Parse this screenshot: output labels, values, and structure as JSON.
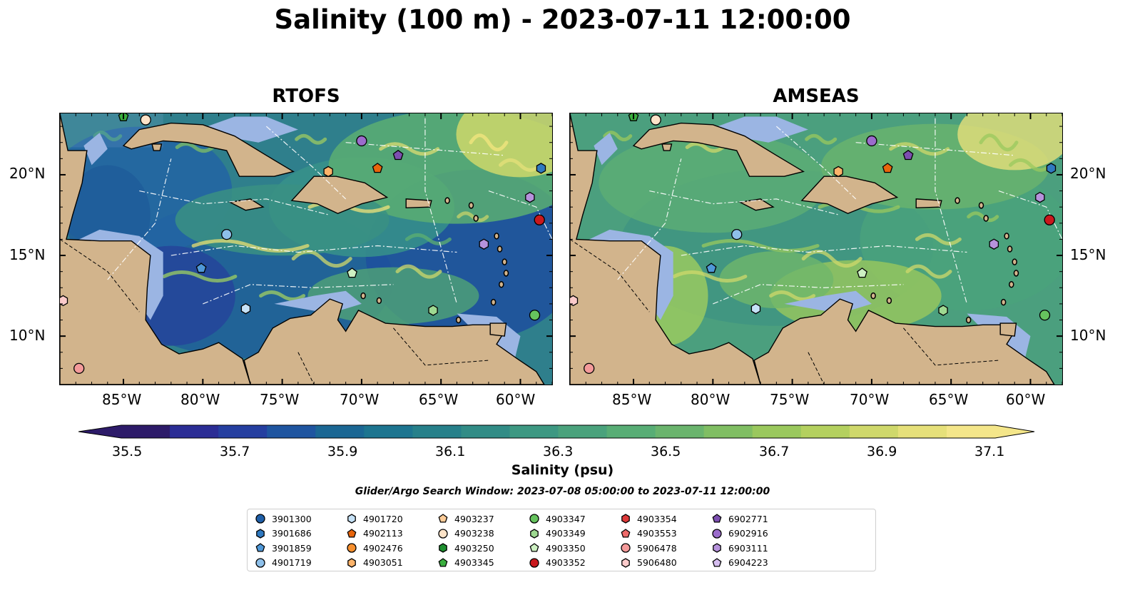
{
  "title": "Salinity (100 m) - 2023-07-11 12:00:00",
  "panels": [
    {
      "name": "rtofs",
      "title": "RTOFS"
    },
    {
      "name": "amseas",
      "title": "AMSEAS"
    }
  ],
  "lat_ticks": [
    "20°N",
    "15°N",
    "10°N"
  ],
  "lon_ticks": [
    "85°W",
    "80°W",
    "75°W",
    "70°W",
    "65°W",
    "60°W"
  ],
  "colors": {
    "land": "#d2b48c",
    "shallow": "#9bb5e3",
    "low_salinity": "#2b1d6b",
    "high_salinity": "#f4e57f"
  },
  "colorbar": {
    "ticks": [
      "35.5",
      "35.7",
      "35.9",
      "36.1",
      "36.3",
      "36.5",
      "36.7",
      "36.9",
      "37.1"
    ],
    "label": "Salinity (psu)",
    "colors": [
      "#2d1b69",
      "#2b2d95",
      "#253fa0",
      "#1f55a0",
      "#1b6794",
      "#1d7590",
      "#26808a",
      "#318c86",
      "#3d9882",
      "#4aa27c",
      "#58ad75",
      "#6ab46d",
      "#80be63",
      "#9ac85d",
      "#b4d05f",
      "#cfd86b",
      "#e6e07a",
      "#f4e68a"
    ]
  },
  "search_window": "Glider/Argo Search Window: 2023-07-08 05:00:00 to 2023-07-11 12:00:00",
  "legend": [
    {
      "id": "3901300",
      "color": "#1f5fa8",
      "shape": "circle"
    },
    {
      "id": "3901686",
      "color": "#2f79c0",
      "shape": "hexagon"
    },
    {
      "id": "3901859",
      "color": "#4f98d8",
      "shape": "pentagon"
    },
    {
      "id": "4901719",
      "color": "#8ec0ea",
      "shape": "circle"
    },
    {
      "id": "4901720",
      "color": "#c6e2f7",
      "shape": "hexagon"
    },
    {
      "id": "4902113",
      "color": "#e8650c",
      "shape": "pentagon"
    },
    {
      "id": "4902476",
      "color": "#f7902e",
      "shape": "circle"
    },
    {
      "id": "4903051",
      "color": "#fcb36a",
      "shape": "hexagon"
    },
    {
      "id": "4903237",
      "color": "#fdcc98",
      "shape": "pentagon"
    },
    {
      "id": "4903238",
      "color": "#fde3c8",
      "shape": "circle"
    },
    {
      "id": "4903250",
      "color": "#1e8f2f",
      "shape": "hexagon"
    },
    {
      "id": "4903345",
      "color": "#3aae3e",
      "shape": "pentagon"
    },
    {
      "id": "4903347",
      "color": "#66c35e",
      "shape": "circle"
    },
    {
      "id": "4903349",
      "color": "#9ed991",
      "shape": "hexagon"
    },
    {
      "id": "4903350",
      "color": "#cdf0c2",
      "shape": "pentagon"
    },
    {
      "id": "4903352",
      "color": "#c9181d",
      "shape": "circle"
    },
    {
      "id": "4903354",
      "color": "#de3a3a",
      "shape": "hexagon"
    },
    {
      "id": "4903553",
      "color": "#ee6a6a",
      "shape": "pentagon"
    },
    {
      "id": "5906478",
      "color": "#f49a9a",
      "shape": "circle"
    },
    {
      "id": "5906480",
      "color": "#fbcaca",
      "shape": "hexagon"
    },
    {
      "id": "6902771",
      "color": "#7c4fb0",
      "shape": "pentagon"
    },
    {
      "id": "6902916",
      "color": "#9b6ccc",
      "shape": "circle"
    },
    {
      "id": "6903111",
      "color": "#b692dc",
      "shape": "hexagon"
    },
    {
      "id": "6904223",
      "color": "#d5bdef",
      "shape": "pentagon"
    }
  ],
  "floats_on_map": [
    {
      "ref": "4903345",
      "lon": -85.0,
      "lat": 23.6
    },
    {
      "ref": "4903238",
      "lon": -83.6,
      "lat": 23.4
    },
    {
      "ref": "4903051",
      "lon": -72.1,
      "lat": 20.2
    },
    {
      "ref": "4902113",
      "lon": -69.0,
      "lat": 20.4
    },
    {
      "ref": "6902916",
      "lon": -70.0,
      "lat": 22.1
    },
    {
      "ref": "6902771",
      "lon": -67.7,
      "lat": 21.2
    },
    {
      "ref": "3901686",
      "lon": -58.7,
      "lat": 20.4
    },
    {
      "ref": "6903111",
      "lon": -59.4,
      "lat": 18.6
    },
    {
      "ref": "4903352",
      "lon": -58.8,
      "lat": 17.2
    },
    {
      "ref": "4901719",
      "lon": -78.5,
      "lat": 16.3
    },
    {
      "ref": "6903111",
      "lon": -62.3,
      "lat": 15.7
    },
    {
      "ref": "3901859",
      "lon": -80.1,
      "lat": 14.2
    },
    {
      "ref": "4903350",
      "lon": -70.6,
      "lat": 13.9
    },
    {
      "ref": "4901720",
      "lon": -77.3,
      "lat": 11.7
    },
    {
      "ref": "4903349",
      "lon": -65.5,
      "lat": 11.6
    },
    {
      "ref": "4903347",
      "lon": -59.1,
      "lat": 11.3
    },
    {
      "ref": "5906480",
      "lon": -88.8,
      "lat": 12.2
    },
    {
      "ref": "5906478",
      "lon": -87.8,
      "lat": 8.0
    }
  ]
}
